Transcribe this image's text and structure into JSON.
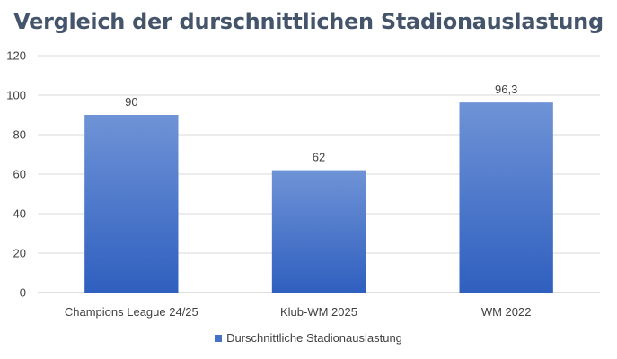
{
  "chart_data": {
    "type": "bar",
    "title": "Vergleich der durschnittlichen Stadionauslastung",
    "categories": [
      "Champions League 24/25",
      "Klub-WM 2025",
      "WM 2022"
    ],
    "series": [
      {
        "name": "Durschnittliche Stadionauslastung",
        "values": [
          90,
          62,
          96.3
        ],
        "labels": [
          "90",
          "62",
          "96,3"
        ],
        "color": "#4472c4"
      }
    ],
    "yticks": [
      "0",
      "20",
      "40",
      "60",
      "80",
      "100",
      "120"
    ],
    "ylim": [
      0,
      120
    ],
    "grid": true,
    "legend_position": "bottom"
  }
}
